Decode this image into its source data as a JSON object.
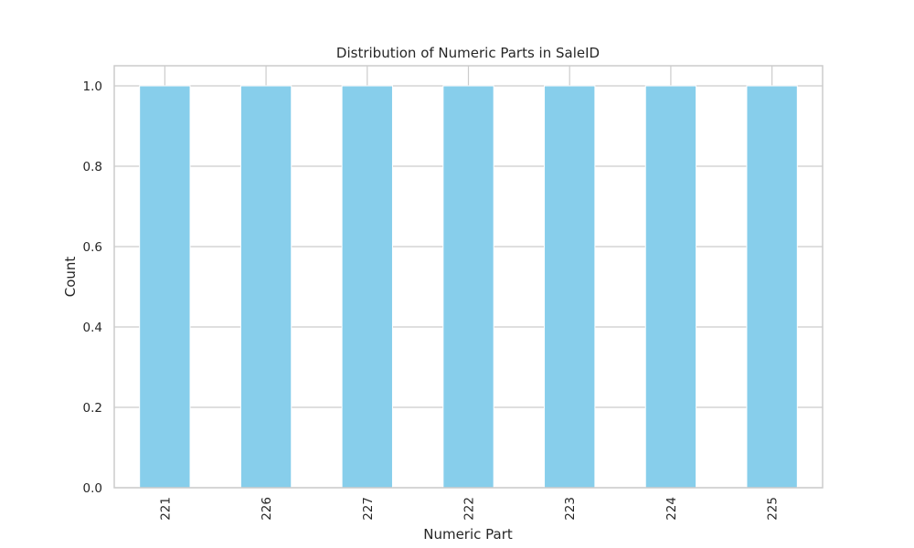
{
  "chart_data": {
    "type": "bar",
    "title": "Distribution of Numeric Parts in SaleID",
    "xlabel": "Numeric Part",
    "ylabel": "Count",
    "categories": [
      "221",
      "226",
      "227",
      "222",
      "223",
      "224",
      "225"
    ],
    "values": [
      1,
      1,
      1,
      1,
      1,
      1,
      1
    ],
    "ylim": [
      0,
      1.05
    ],
    "yticks": [
      0.0,
      0.2,
      0.4,
      0.6,
      0.8,
      1.0
    ],
    "ytick_labels": [
      "0.0",
      "0.2",
      "0.4",
      "0.6",
      "0.8",
      "1.0"
    ],
    "grid": true,
    "bar_color": "#87CEEB",
    "grid_color": "#cccccc",
    "text_color": "#262626"
  }
}
